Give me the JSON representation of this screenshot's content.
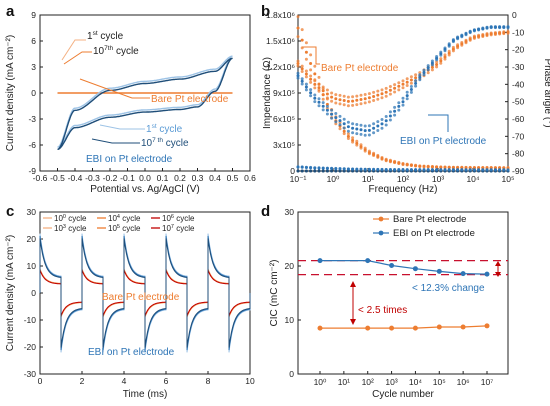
{
  "colors": {
    "orange": "#ED7D31",
    "blue": "#2E75B6",
    "darkblue": "#1F4E79",
    "red": "#C00000",
    "dashred": "#C8102E",
    "paleorange": "#F4B183",
    "paleblue": "#9DC3E6"
  },
  "chart_data": [
    {
      "panel": "a",
      "type": "line",
      "xlabel": "Potential vs. Ag/AgCl (V)",
      "ylabel": "Current density (mA cm⁻²)",
      "xlim": [
        -0.6,
        0.6
      ],
      "ylim": [
        -9,
        9
      ],
      "xticks": [
        "-0.6",
        "-0.5",
        "-0.4",
        "-0.3",
        "-0.2",
        "-0.1",
        "0.0",
        "0.1",
        "0.2",
        "0.3",
        "0.4",
        "0.5",
        "0.6"
      ],
      "yticks": [
        "-9",
        "-6",
        "-3",
        "0",
        "3",
        "6",
        "9"
      ],
      "series": [
        {
          "name": "Bare Pt electrode",
          "x": [
            -0.5,
            0.5
          ],
          "y": [
            0.0,
            0.0
          ]
        },
        {
          "name": "EBI on Pt electrode",
          "x": [
            -0.5,
            -0.4,
            -0.2,
            0.0,
            0.2,
            0.3,
            0.4,
            0.5,
            0.4,
            0.2,
            0.0,
            -0.2,
            -0.4,
            -0.5
          ],
          "y": [
            -6.5,
            -4.0,
            -2.8,
            -2.2,
            -1.9,
            -1.6,
            0.2,
            4.0,
            2.5,
            1.6,
            1.1,
            0.3,
            -2.0,
            -6.5
          ]
        }
      ],
      "annotations": {
        "bare_first": "1",
        "bare_first_sup": "st",
        "bare_first_tail": " cycle",
        "bare_tenth": "10",
        "bare_tenth_sup": "7th",
        "bare_tenth_tail": " cycle",
        "bare_label": "Bare Pt electrode",
        "ebi_first": "1",
        "ebi_first_sup": "st",
        "ebi_first_tail": " cycle",
        "ebi_tenth": "10",
        "ebi_tenth_sup": "7 th",
        "ebi_tenth_tail": " cycle",
        "ebi_label": "EBI on Pt electrode"
      }
    },
    {
      "panel": "b",
      "type": "scatter",
      "xlabel": "Frequency (Hz)",
      "ylabel": "Impendance (Ω)",
      "ylabel_right": "Phase angle (°)",
      "xscale": "log",
      "xlim": [
        0.1,
        100000
      ],
      "ylim_left": [
        0,
        1800000
      ],
      "ylim_right": [
        -90,
        0
      ],
      "xticks": [
        "10⁻¹",
        "10⁰",
        "10¹",
        "10²",
        "10³",
        "10⁴",
        "10⁵"
      ],
      "yticks_left": [
        "0",
        "3x10⁵",
        "6x10⁵",
        "9x10⁵",
        "1.2x10⁶",
        "1.5x10⁶",
        "1.8x10⁶"
      ],
      "yticks_right": [
        "0",
        "-10",
        "-20",
        "-30",
        "-40",
        "-50",
        "-60",
        "-70",
        "-80",
        "-90"
      ],
      "series": [
        {
          "name": "Bare Pt electrode",
          "quantity": "impedance",
          "x": [
            0.1,
            0.2,
            0.5,
            1,
            3,
            10,
            30,
            100,
            300,
            1000,
            3000,
            10000,
            30000,
            100000
          ],
          "y": [
            1650000,
            1300000,
            900000,
            620000,
            380000,
            220000,
            130000,
            80000,
            55000,
            45000,
            40000,
            38000,
            37000,
            36000
          ]
        },
        {
          "name": "Bare Pt electrode",
          "quantity": "phase",
          "x": [
            0.1,
            0.3,
            1,
            3,
            10,
            30,
            100,
            300,
            1000,
            3000,
            10000,
            30000,
            100000
          ],
          "y": [
            -28,
            -40,
            -48,
            -50,
            -48,
            -45,
            -40,
            -35,
            -28,
            -19,
            -13,
            -11,
            -10
          ]
        },
        {
          "name": "EBI on Pt electrode",
          "quantity": "impedance",
          "x": [
            0.1,
            0.3,
            1,
            3,
            10,
            30,
            100,
            1000,
            10000,
            100000
          ],
          "y": [
            45000,
            35000,
            28000,
            22000,
            18000,
            16000,
            15000,
            14000,
            13000,
            12000
          ]
        },
        {
          "name": "EBI on Pt electrode",
          "quantity": "phase",
          "x": [
            0.1,
            0.3,
            1,
            3,
            10,
            30,
            100,
            300,
            1000,
            3000,
            10000,
            30000,
            100000
          ],
          "y": [
            -35,
            -48,
            -58,
            -65,
            -67,
            -62,
            -50,
            -36,
            -24,
            -14,
            -9,
            -7,
            -7
          ]
        }
      ],
      "annotations": {
        "bare_label": "Bare Pt electrode",
        "ebi_label": "EBI on Pt electrode"
      }
    },
    {
      "panel": "c",
      "type": "line",
      "xlabel": "Time (ms)",
      "ylabel": "Current density (mA cm⁻²)",
      "xlim": [
        0,
        10
      ],
      "ylim": [
        -30,
        30
      ],
      "xticks": [
        "0",
        "2",
        "4",
        "6",
        "8",
        "10"
      ],
      "yticks": [
        "-30",
        "-20",
        "-10",
        "0",
        "10",
        "20",
        "30"
      ],
      "pulse_period_ms": 2,
      "legend": [
        {
          "pre": "10",
          "sup": "0",
          "post": " cycle",
          "color": "#F4B183"
        },
        {
          "pre": "10",
          "sup": "3",
          "post": " cycle",
          "color": "#F4B183"
        },
        {
          "pre": "10",
          "sup": "4",
          "post": " cycle",
          "color": "#ED7D31"
        },
        {
          "pre": "10",
          "sup": "5",
          "post": " cycle",
          "color": "#ED7D31"
        },
        {
          "pre": "10",
          "sup": "6",
          "post": " cycle",
          "color": "#C00000"
        },
        {
          "pre": "10",
          "sup": "7",
          "post": " cycle",
          "color": "#C00000"
        }
      ],
      "series": [
        {
          "name": "Bare Pt electrode",
          "peak": 9,
          "tail": 3.5
        },
        {
          "name": "EBI on Pt electrode",
          "peak": 22,
          "tail": 6
        }
      ],
      "annotations": {
        "bare_label": "Bare Pt electrode",
        "ebi_label": "EBI on Pt electrode"
      }
    },
    {
      "panel": "d",
      "type": "line",
      "xlabel": "Cycle number",
      "ylabel": "CIC (mC cm⁻²)",
      "ylim": [
        0,
        30
      ],
      "categories": [
        "10⁰",
        "10¹",
        "10²",
        "10³",
        "10⁴",
        "10⁵",
        "10⁶",
        "10⁷"
      ],
      "xticks": [
        "10⁰",
        "10¹",
        "10²",
        "10³",
        "10⁴",
        "10⁵",
        "10⁶",
        "10⁷"
      ],
      "yticks": [
        "0",
        "10",
        "20",
        "30"
      ],
      "series": [
        {
          "name": "Bare Pt electrode",
          "x": [
            0,
            2,
            3,
            4,
            5,
            6,
            7
          ],
          "values": [
            8.5,
            8.5,
            8.5,
            8.5,
            8.7,
            8.7,
            8.9
          ]
        },
        {
          "name": "EBI on Pt electrode",
          "x": [
            0,
            2,
            3,
            4,
            5,
            6,
            7
          ],
          "values": [
            21.0,
            21.0,
            20.1,
            19.5,
            19.0,
            18.6,
            18.5
          ]
        }
      ],
      "reference_lines": [
        21.0,
        18.4
      ],
      "annotations": {
        "change": "< 12.3% change",
        "times": "< 2.5 times"
      }
    }
  ]
}
